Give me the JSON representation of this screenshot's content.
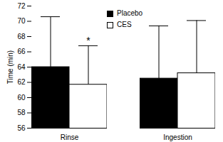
{
  "chart_data": {
    "type": "bar",
    "categories": [
      "Rinse",
      "Ingestion"
    ],
    "series": [
      {
        "name": "Placebo",
        "color": "#000000",
        "values": [
          64.0,
          62.5
        ],
        "errors": [
          6.6,
          6.9
        ]
      },
      {
        "name": "CES",
        "color": "#ffffff",
        "values": [
          61.7,
          63.2
        ],
        "errors": [
          5.1,
          6.9
        ]
      }
    ],
    "y_label": "Time (min)",
    "ylim": [
      56,
      72
    ],
    "yticks": [
      56,
      58,
      60,
      62,
      64,
      66,
      68,
      70,
      72
    ],
    "legend": "top",
    "annotations": [
      {
        "text": "*",
        "category": "Rinse",
        "series": "CES"
      }
    ]
  }
}
